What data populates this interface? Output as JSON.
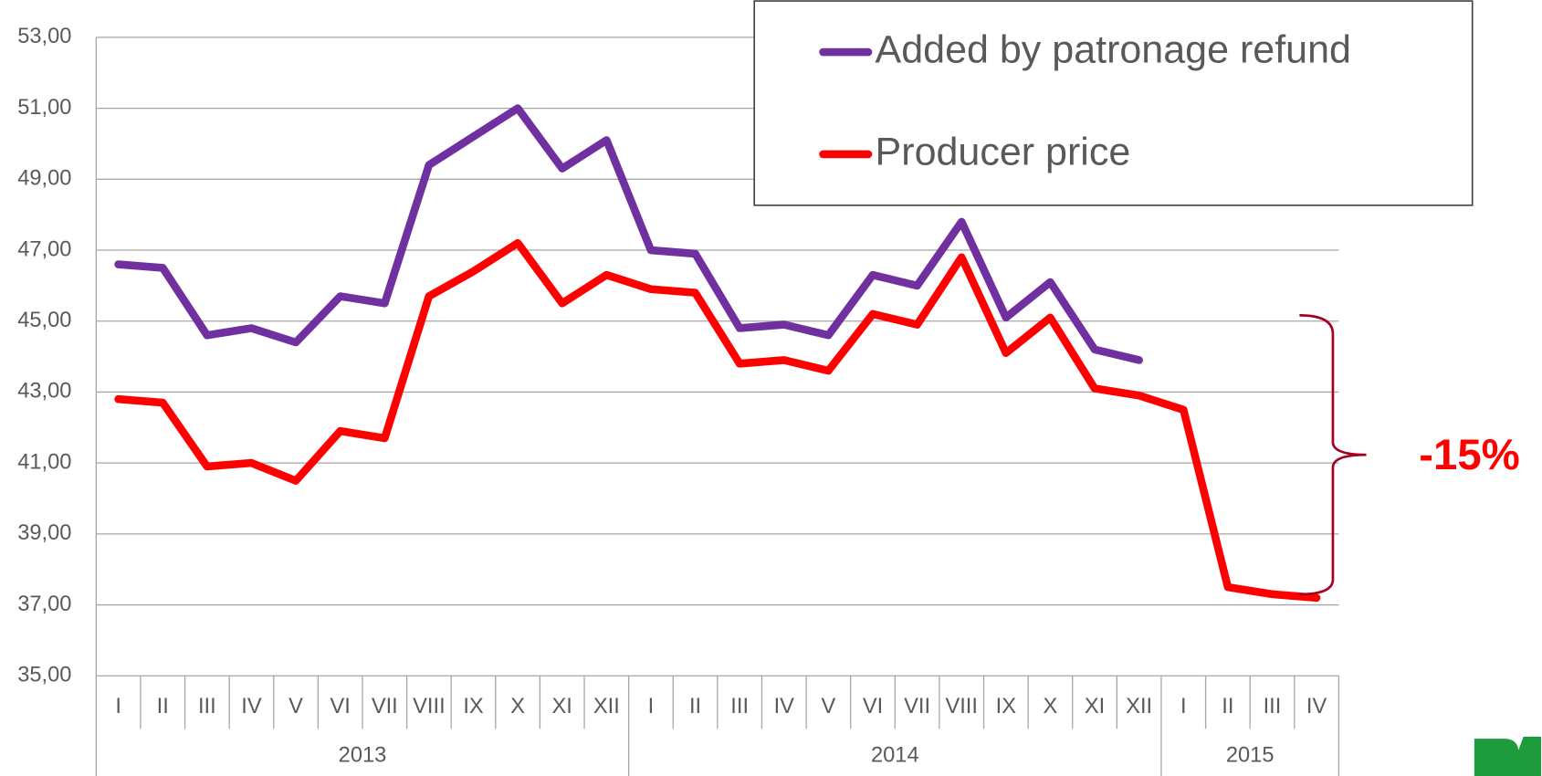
{
  "chart_data": {
    "type": "line",
    "categories": [
      {
        "month": "I",
        "year": "2013"
      },
      {
        "month": "II",
        "year": "2013"
      },
      {
        "month": "III",
        "year": "2013"
      },
      {
        "month": "IV",
        "year": "2013"
      },
      {
        "month": "V",
        "year": "2013"
      },
      {
        "month": "VI",
        "year": "2013"
      },
      {
        "month": "VII",
        "year": "2013"
      },
      {
        "month": "VIII",
        "year": "2013"
      },
      {
        "month": "IX",
        "year": "2013"
      },
      {
        "month": "X",
        "year": "2013"
      },
      {
        "month": "XI",
        "year": "2013"
      },
      {
        "month": "XII",
        "year": "2013"
      },
      {
        "month": "I",
        "year": "2014"
      },
      {
        "month": "II",
        "year": "2014"
      },
      {
        "month": "III",
        "year": "2014"
      },
      {
        "month": "IV",
        "year": "2014"
      },
      {
        "month": "V",
        "year": "2014"
      },
      {
        "month": "VI",
        "year": "2014"
      },
      {
        "month": "VII",
        "year": "2014"
      },
      {
        "month": "VIII",
        "year": "2014"
      },
      {
        "month": "IX",
        "year": "2014"
      },
      {
        "month": "X",
        "year": "2014"
      },
      {
        "month": "XI",
        "year": "2014"
      },
      {
        "month": "XII",
        "year": "2014"
      },
      {
        "month": "I",
        "year": "2015"
      },
      {
        "month": "II",
        "year": "2015"
      },
      {
        "month": "III",
        "year": "2015"
      },
      {
        "month": "IV",
        "year": "2015"
      }
    ],
    "series": [
      {
        "name": "Added by patronage refund",
        "color": "#7030a0",
        "values": [
          46.6,
          46.5,
          44.6,
          44.8,
          44.4,
          45.7,
          45.5,
          49.4,
          50.2,
          51.0,
          49.3,
          50.1,
          47.0,
          46.9,
          44.8,
          44.9,
          44.6,
          46.3,
          46.0,
          47.8,
          45.1,
          46.1,
          44.2,
          43.9,
          null,
          null,
          null,
          null
        ]
      },
      {
        "name": "Producer price",
        "color": "#ff0000",
        "values": [
          42.8,
          42.7,
          40.9,
          41.0,
          40.5,
          41.9,
          41.7,
          45.7,
          46.4,
          47.2,
          45.5,
          46.3,
          45.9,
          45.8,
          43.8,
          43.9,
          43.6,
          45.2,
          44.9,
          46.8,
          44.1,
          45.1,
          43.1,
          42.9,
          42.5,
          37.5,
          37.3,
          37.2
        ]
      }
    ],
    "ylim": [
      35,
      53
    ],
    "yticks": [
      {
        "value": 35,
        "label": "35,00"
      },
      {
        "value": 37,
        "label": "37,00"
      },
      {
        "value": 39,
        "label": "39,00"
      },
      {
        "value": 41,
        "label": "41,00"
      },
      {
        "value": 43,
        "label": "43,00"
      },
      {
        "value": 45,
        "label": "45,00"
      },
      {
        "value": 47,
        "label": "47,00"
      },
      {
        "value": 49,
        "label": "49,00"
      },
      {
        "value": 51,
        "label": "51,00"
      },
      {
        "value": 53,
        "label": "53,00"
      }
    ],
    "grid": true,
    "legend": "top-right",
    "annotation": "-15%"
  }
}
